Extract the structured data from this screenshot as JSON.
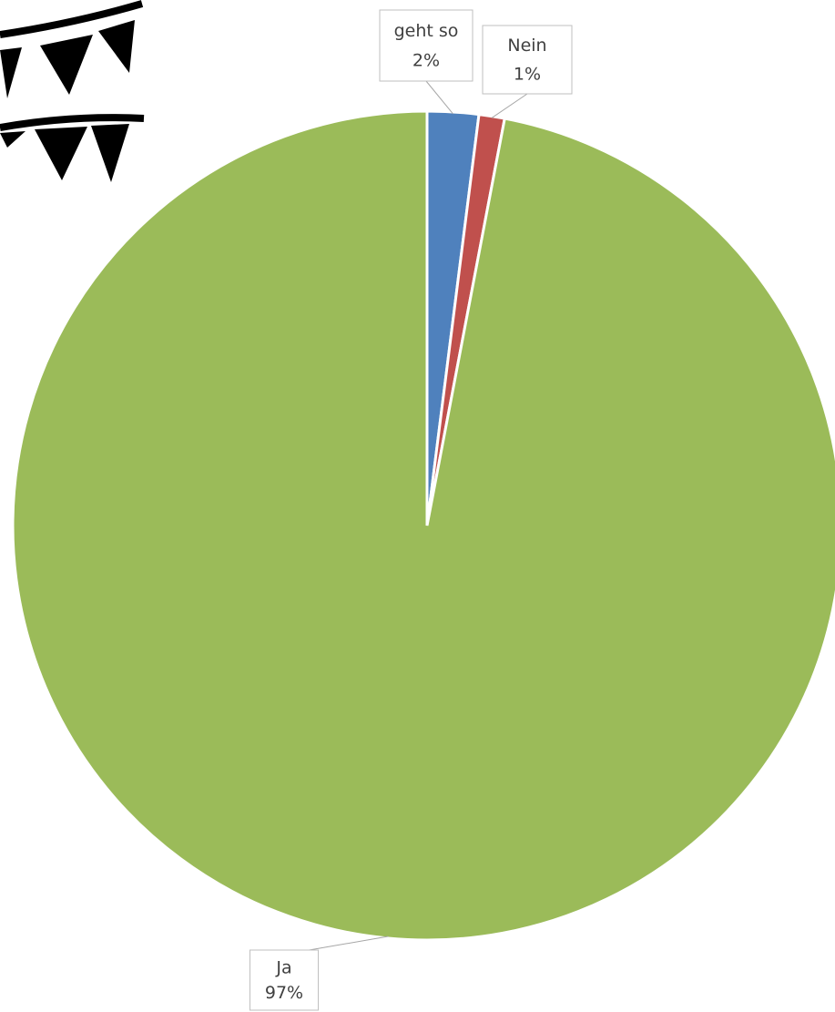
{
  "chart_data": {
    "type": "pie",
    "categories": [
      "geht so",
      "Nein",
      "Ja"
    ],
    "values": [
      2,
      1,
      97
    ],
    "value_labels": [
      "2%",
      "1%",
      "97%"
    ],
    "colors": [
      "#4f81bd",
      "#c0504d",
      "#9bbb59"
    ]
  }
}
